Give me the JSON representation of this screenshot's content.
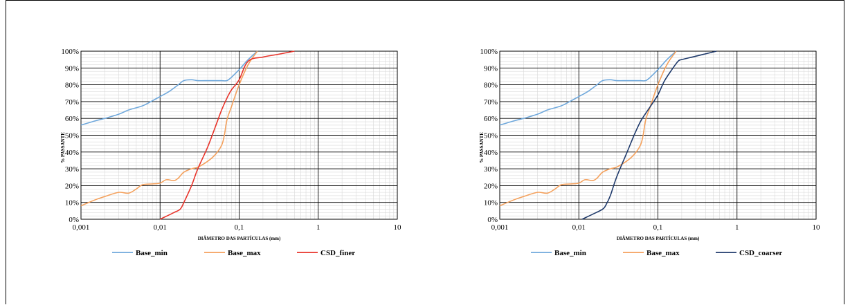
{
  "chart_data": [
    {
      "type": "line",
      "xscale": "log",
      "xlim": [
        0.001,
        10
      ],
      "ylim": [
        0,
        100
      ],
      "x_ticklabels": [
        "0,001",
        "0,01",
        "0,1",
        "1",
        "10"
      ],
      "y_ticklabels": [
        "0%",
        "10%",
        "20%",
        "30%",
        "40%",
        "50%",
        "60%",
        "70%",
        "80%",
        "90%",
        "100%"
      ],
      "xlabel": "DIÂMETRO DAS PARTÍCULAS (mm)",
      "ylabel": "% PASSANTE",
      "grid": "major and minor",
      "legend_position": "bottom",
      "series": [
        {
          "name": "Base_min",
          "color": "#6fa8dc",
          "x": [
            0.001,
            0.0015,
            0.002,
            0.003,
            0.004,
            0.006,
            0.008,
            0.01,
            0.013,
            0.017,
            0.02,
            0.025,
            0.03,
            0.04,
            0.05,
            0.06,
            0.07,
            0.08,
            0.1,
            0.13,
            0.17
          ],
          "y": [
            56,
            58.5,
            60,
            62.5,
            65,
            67.5,
            70.5,
            73,
            76,
            80,
            82.5,
            83,
            82.5,
            82.5,
            82.5,
            82.5,
            82.5,
            84.5,
            89,
            95,
            100
          ]
        },
        {
          "name": "Base_max",
          "color": "#f4a15d",
          "x": [
            0.001,
            0.0015,
            0.002,
            0.003,
            0.004,
            0.005,
            0.006,
            0.008,
            0.01,
            0.012,
            0.015,
            0.017,
            0.02,
            0.025,
            0.03,
            0.04,
            0.05,
            0.06,
            0.065,
            0.07,
            0.08,
            0.1,
            0.13,
            0.17
          ],
          "y": [
            8,
            11.5,
            13.5,
            16,
            15.5,
            18,
            20.5,
            21,
            21.5,
            23.5,
            23,
            24.5,
            28,
            30,
            31,
            34.5,
            38.5,
            44,
            50,
            59,
            67,
            80,
            92,
            100
          ]
        }
      ]
    },
    {
      "type": "line",
      "xscale": "log",
      "xlim": [
        0.001,
        10
      ],
      "ylim": [
        0,
        100
      ],
      "x_ticklabels": [
        "0,001",
        "0,01",
        "0,1",
        "1",
        "10"
      ],
      "y_ticklabels": [
        "0%",
        "10%",
        "20%",
        "30%",
        "40%",
        "50%",
        "60%",
        "70%",
        "80%",
        "90%",
        "100%"
      ],
      "xlabel": "DIÂMETRO DAS PARTÍCULAS (mm)",
      "ylabel": "% PASSANTE",
      "grid": "major and minor",
      "legend_position": "bottom",
      "series": [
        {
          "name": "Base_min",
          "color": "#6fa8dc",
          "x": [
            0.001,
            0.0015,
            0.002,
            0.003,
            0.004,
            0.006,
            0.008,
            0.01,
            0.013,
            0.017,
            0.02,
            0.025,
            0.03,
            0.04,
            0.05,
            0.06,
            0.07,
            0.08,
            0.1,
            0.13,
            0.17
          ],
          "y": [
            56,
            58.5,
            60,
            62.5,
            65,
            67.5,
            70.5,
            73,
            76,
            80,
            82.5,
            83,
            82.5,
            82.5,
            82.5,
            82.5,
            82.5,
            84.5,
            89,
            95,
            100
          ]
        },
        {
          "name": "Base_max",
          "color": "#f4a15d",
          "x": [
            0.001,
            0.0015,
            0.002,
            0.003,
            0.004,
            0.005,
            0.006,
            0.008,
            0.01,
            0.012,
            0.015,
            0.017,
            0.02,
            0.025,
            0.03,
            0.04,
            0.05,
            0.06,
            0.065,
            0.07,
            0.08,
            0.1,
            0.13,
            0.17
          ],
          "y": [
            8,
            11.5,
            13.5,
            16,
            15.5,
            18,
            20.5,
            21,
            21.5,
            23.5,
            23,
            24.5,
            28,
            30,
            31,
            34.5,
            38.5,
            44,
            50,
            59,
            67,
            80,
            92,
            100
          ]
        }
      ]
    }
  ],
  "overlay_series": [
    {
      "name": "CSD_finer",
      "color": "#e8332a",
      "x": [
        0.01,
        0.015,
        0.018,
        0.02,
        0.025,
        0.03,
        0.04,
        0.05,
        0.06,
        0.07,
        0.08,
        0.1,
        0.13,
        0.2,
        0.3,
        0.5
      ],
      "y": [
        0,
        4,
        6,
        10,
        20,
        30,
        43,
        55,
        65,
        72,
        77,
        83,
        94,
        96.5,
        98,
        100
      ]
    },
    {
      "name": "CSD_coarser",
      "color": "#1f3a6b",
      "x": [
        0.011,
        0.015,
        0.02,
        0.022,
        0.025,
        0.03,
        0.04,
        0.05,
        0.06,
        0.07,
        0.08,
        0.1,
        0.12,
        0.15,
        0.18,
        0.2,
        0.3,
        0.55
      ],
      "y": [
        0,
        3,
        6,
        8.5,
        14,
        25,
        39,
        50,
        58,
        63,
        67,
        74,
        82,
        89,
        94,
        95,
        97,
        100
      ]
    }
  ]
}
